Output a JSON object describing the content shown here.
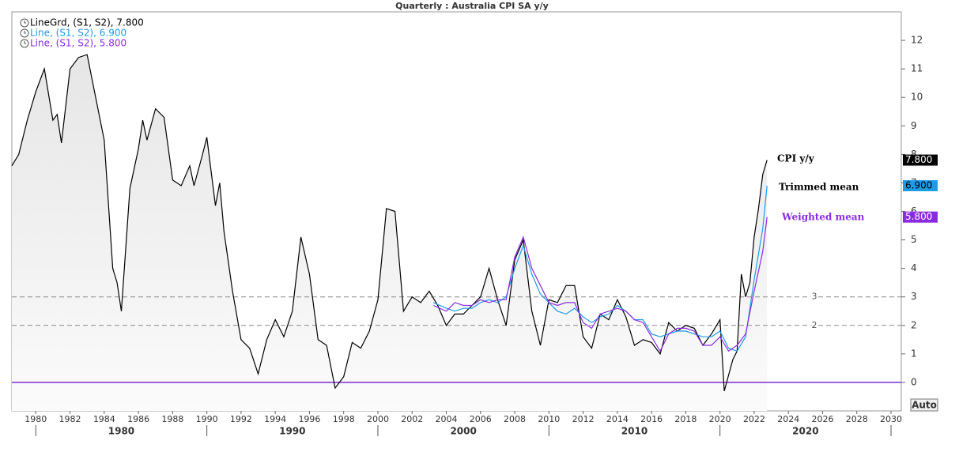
{
  "chart_data": {
    "type": "line",
    "title": "Quarterly : Australia CPI SA y/y",
    "xlim": [
      1978.6,
      2030.6
    ],
    "xticks": [
      1980,
      1982,
      1984,
      1986,
      1988,
      1990,
      1992,
      1994,
      1996,
      1998,
      2000,
      2002,
      2004,
      2006,
      2008,
      2010,
      2012,
      2014,
      2016,
      2018,
      2020,
      2022,
      2024,
      2026,
      2028,
      2030
    ],
    "decades": [
      1980,
      1990,
      2000,
      2010,
      2020
    ],
    "ylim": [
      -1,
      13
    ],
    "yticks": [
      0,
      1,
      2,
      3,
      4,
      5,
      6,
      7,
      8,
      9,
      10,
      11,
      12
    ],
    "dashed_lines": [
      3,
      2
    ],
    "baseline": {
      "value": 0,
      "color": "#7b2fd6"
    },
    "auto_button": "Auto",
    "series": [
      {
        "name": "LineGrd, (S1, S2), 7.800",
        "annotation": "CPI y/y",
        "color": "#000000",
        "fill": true,
        "last_value_label": "7.800",
        "box_color": "#000000",
        "box_text_color": "#ffffff",
        "x": [
          1978.6,
          1979.0,
          1979.5,
          1980.0,
          1980.5,
          1981.0,
          1981.25,
          1981.5,
          1982.0,
          1982.5,
          1983.0,
          1983.5,
          1984.0,
          1984.5,
          1984.75,
          1985.0,
          1985.5,
          1986.0,
          1986.25,
          1986.5,
          1987.0,
          1987.5,
          1988.0,
          1988.5,
          1989.0,
          1989.25,
          1989.75,
          1990.0,
          1990.5,
          1990.75,
          1991.0,
          1991.5,
          1992.0,
          1992.5,
          1993.0,
          1993.5,
          1994.0,
          1994.5,
          1995.0,
          1995.5,
          1996.0,
          1996.5,
          1997.0,
          1997.5,
          1998.0,
          1998.5,
          1999.0,
          1999.5,
          2000.0,
          2000.5,
          2001.0,
          2001.5,
          2002.0,
          2002.5,
          2003.0,
          2003.5,
          2004.0,
          2004.5,
          2005.0,
          2005.5,
          2006.0,
          2006.5,
          2007.0,
          2007.5,
          2008.0,
          2008.5,
          2009.0,
          2009.5,
          2010.0,
          2010.5,
          2011.0,
          2011.5,
          2012.0,
          2012.5,
          2013.0,
          2013.5,
          2014.0,
          2014.5,
          2015.0,
          2015.5,
          2016.0,
          2016.5,
          2017.0,
          2017.5,
          2018.0,
          2018.5,
          2019.0,
          2019.5,
          2020.0,
          2020.25,
          2020.75,
          2021.0,
          2021.25,
          2021.5,
          2021.75,
          2022.0,
          2022.25,
          2022.5,
          2022.75
        ],
        "values": [
          7.6,
          8.0,
          9.2,
          10.2,
          11.0,
          9.2,
          9.4,
          8.4,
          11.0,
          11.4,
          11.5,
          10.0,
          8.5,
          4.0,
          3.5,
          2.5,
          6.8,
          8.2,
          9.2,
          8.5,
          9.6,
          9.3,
          7.1,
          6.9,
          7.6,
          6.9,
          8.0,
          8.6,
          6.2,
          7.0,
          5.3,
          3.2,
          1.5,
          1.2,
          0.3,
          1.5,
          2.2,
          1.6,
          2.5,
          5.1,
          3.8,
          1.5,
          1.3,
          -0.2,
          0.2,
          1.4,
          1.2,
          1.8,
          2.9,
          6.1,
          6.0,
          2.5,
          3.0,
          2.8,
          3.2,
          2.7,
          2.0,
          2.4,
          2.4,
          2.7,
          3.0,
          4.0,
          2.9,
          2.0,
          4.3,
          5.0,
          2.5,
          1.3,
          2.9,
          2.8,
          3.4,
          3.4,
          1.6,
          1.2,
          2.4,
          2.2,
          2.9,
          2.3,
          1.3,
          1.5,
          1.4,
          1.0,
          2.1,
          1.8,
          2.0,
          1.9,
          1.3,
          1.7,
          2.2,
          -0.3,
          0.8,
          1.1,
          3.8,
          3.0,
          3.5,
          5.1,
          6.1,
          7.3,
          7.8
        ]
      },
      {
        "name": "Line, (S1, S2), 6.900",
        "annotation": "Trimmed mean",
        "color": "#1e9be8",
        "fill": false,
        "last_value_label": "6.900",
        "box_color": "#1e9be8",
        "box_text_color": "#000000",
        "x": [
          2003.25,
          2004.0,
          2004.5,
          2005.0,
          2005.5,
          2006.0,
          2006.5,
          2007.0,
          2007.5,
          2008.0,
          2008.5,
          2009.0,
          2009.5,
          2010.0,
          2010.5,
          2011.0,
          2011.5,
          2012.0,
          2012.5,
          2013.0,
          2013.5,
          2014.0,
          2014.5,
          2015.0,
          2015.5,
          2016.0,
          2016.5,
          2017.0,
          2017.5,
          2018.0,
          2018.5,
          2019.0,
          2019.5,
          2020.0,
          2020.5,
          2021.0,
          2021.5,
          2022.0,
          2022.5,
          2022.75
        ],
        "values": [
          2.8,
          2.6,
          2.5,
          2.6,
          2.6,
          2.8,
          2.9,
          2.8,
          3.0,
          4.0,
          4.8,
          3.8,
          3.1,
          2.8,
          2.5,
          2.4,
          2.6,
          2.3,
          2.1,
          2.3,
          2.4,
          2.7,
          2.5,
          2.2,
          2.2,
          1.7,
          1.6,
          1.7,
          1.8,
          1.8,
          1.7,
          1.6,
          1.6,
          1.8,
          1.2,
          1.1,
          1.6,
          3.6,
          5.4,
          6.9
        ]
      },
      {
        "name": "Line, (S1, S2), 5.800",
        "annotation": "Weighted mean",
        "color": "#8a2be2",
        "fill": false,
        "last_value_label": "5.800",
        "box_color": "#8a2be2",
        "box_text_color": "#ffffff",
        "x": [
          2003.25,
          2004.0,
          2004.5,
          2005.0,
          2005.5,
          2006.0,
          2006.5,
          2007.0,
          2007.5,
          2008.0,
          2008.5,
          2009.0,
          2009.5,
          2010.0,
          2010.5,
          2011.0,
          2011.5,
          2012.0,
          2012.5,
          2013.0,
          2013.5,
          2014.0,
          2014.5,
          2015.0,
          2015.5,
          2016.0,
          2016.5,
          2017.0,
          2017.5,
          2018.0,
          2018.5,
          2019.0,
          2019.5,
          2020.0,
          2020.5,
          2021.0,
          2021.5,
          2022.0,
          2022.5,
          2022.75
        ],
        "values": [
          2.7,
          2.5,
          2.8,
          2.7,
          2.7,
          2.9,
          2.8,
          2.9,
          2.9,
          4.4,
          5.1,
          4.0,
          3.4,
          2.8,
          2.7,
          2.8,
          2.8,
          2.1,
          1.9,
          2.4,
          2.5,
          2.6,
          2.5,
          2.2,
          2.1,
          1.6,
          1.1,
          1.7,
          1.9,
          1.9,
          1.8,
          1.3,
          1.3,
          1.6,
          1.1,
          1.3,
          1.7,
          3.2,
          4.6,
          5.8
        ]
      }
    ]
  }
}
